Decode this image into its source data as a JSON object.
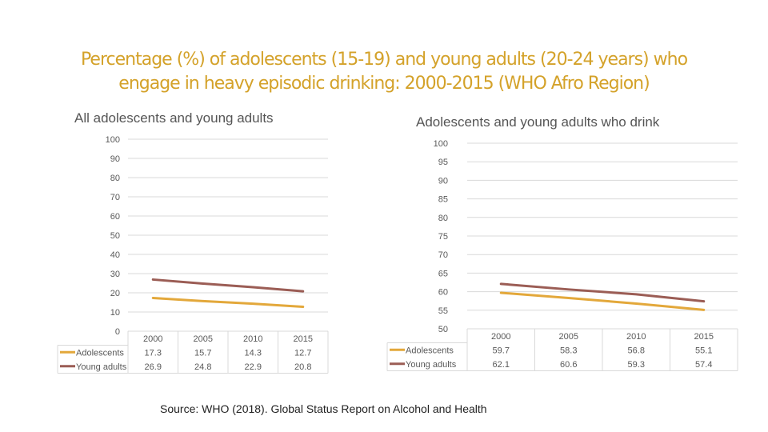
{
  "title": {
    "line1": "Percentage (%) of adolescents (15-19) and young adults (20-24 years) who",
    "line2": "engage in heavy episodic drinking: 2000-2015 (WHO Afro Region)"
  },
  "source": "Source: WHO (2018). Global Status Report on Alcohol and Health",
  "colors": {
    "adolescents": "#e3a83b",
    "young_adults": "#9b5d55",
    "grid": "#d9d9d9",
    "axis_text": "#595959"
  },
  "chart_data": [
    {
      "type": "line",
      "title": "All adolescents and young adults",
      "categories": [
        "2000",
        "2005",
        "2010",
        "2015"
      ],
      "ylim": [
        0,
        100
      ],
      "yticks": [
        0,
        10,
        20,
        30,
        40,
        50,
        60,
        70,
        80,
        90,
        100
      ],
      "grid": true,
      "legend": "data-table",
      "series": [
        {
          "name": "Adolescents",
          "values": [
            17.3,
            15.7,
            14.3,
            12.7
          ]
        },
        {
          "name": "Young adults",
          "values": [
            26.9,
            24.8,
            22.9,
            20.8
          ]
        }
      ]
    },
    {
      "type": "line",
      "title": "Adolescents and young adults who drink",
      "categories": [
        "2000",
        "2005",
        "2010",
        "2015"
      ],
      "ylim": [
        50,
        100
      ],
      "yticks": [
        50,
        55,
        60,
        65,
        70,
        75,
        80,
        85,
        90,
        95,
        100
      ],
      "grid": true,
      "legend": "data-table",
      "series": [
        {
          "name": "Adolescents",
          "values": [
            59.7,
            58.3,
            56.8,
            55.1
          ]
        },
        {
          "name": "Young adults",
          "values": [
            62.1,
            60.6,
            59.3,
            57.4
          ]
        }
      ]
    }
  ]
}
